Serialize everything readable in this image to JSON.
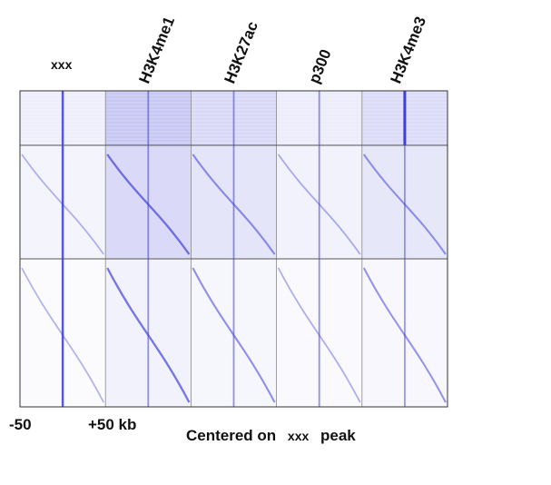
{
  "columns": [
    {
      "label": "xxx",
      "rotated": false
    },
    {
      "label": "H3K4me1",
      "rotated": true
    },
    {
      "label": "H3K27ac",
      "rotated": true
    },
    {
      "label": "p300",
      "rotated": true
    },
    {
      "label": "H3K4me3",
      "rotated": true
    }
  ],
  "axis": {
    "left_label": "-50",
    "right_label": "+50 kb"
  },
  "caption": {
    "prefix": "Centered on",
    "marker": "xxx",
    "suffix": "peak"
  },
  "heatmap": {
    "color": "#3a3ad8",
    "panel_count": 5,
    "cluster_count": 3,
    "column_intensity": [
      0.25,
      0.85,
      0.6,
      0.3,
      0.55
    ]
  }
}
